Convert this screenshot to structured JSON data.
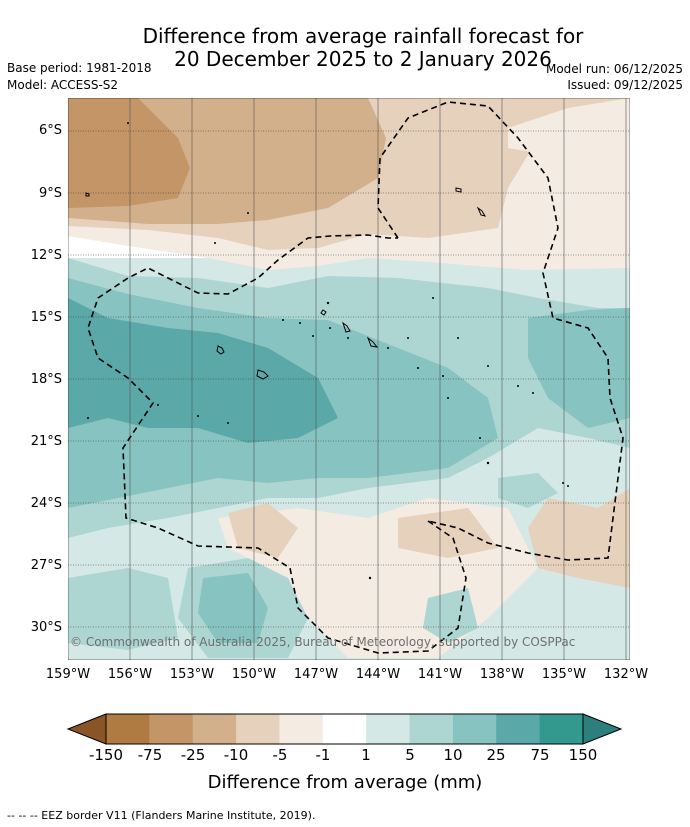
{
  "title": {
    "line1": "Difference from average rainfall forecast for",
    "line2": "20 December 2025 to 2 January 2026"
  },
  "meta": {
    "base_period": "Base period: 1981-2018",
    "model": "Model: ACCESS-S2",
    "model_run": "Model run: 06/12/2025",
    "issued": "Issued: 09/12/2025"
  },
  "axes": {
    "lat_labels": [
      "6°S",
      "9°S",
      "12°S",
      "15°S",
      "18°S",
      "21°S",
      "24°S",
      "27°S",
      "30°S"
    ],
    "lon_labels": [
      "159°W",
      "156°W",
      "153°W",
      "150°W",
      "147°W",
      "144°W",
      "141°W",
      "138°W",
      "135°W",
      "132°W"
    ]
  },
  "copyright": "© Commonwealth of Australia 2025, Bureau of Meteorology, supported by COSPPac",
  "colorbar": {
    "ticks": [
      "-150",
      "-75",
      "-25",
      "-10",
      "-5",
      "-1",
      "1",
      "5",
      "10",
      "25",
      "75",
      "150"
    ],
    "colors": [
      "#8a5526",
      "#b07a43",
      "#c49566",
      "#d3b08c",
      "#e6d1bd",
      "#f4ebe3",
      "#ffffff",
      "#d4e8e6",
      "#add6d3",
      "#86c3c1",
      "#5aa8a7",
      "#33998f",
      "#2c7f7c"
    ],
    "label": "Difference from average (mm)"
  },
  "legend": {
    "eez": "-- -- -- EEZ border V11 (Flanders Marine Institute, 2019)."
  }
}
